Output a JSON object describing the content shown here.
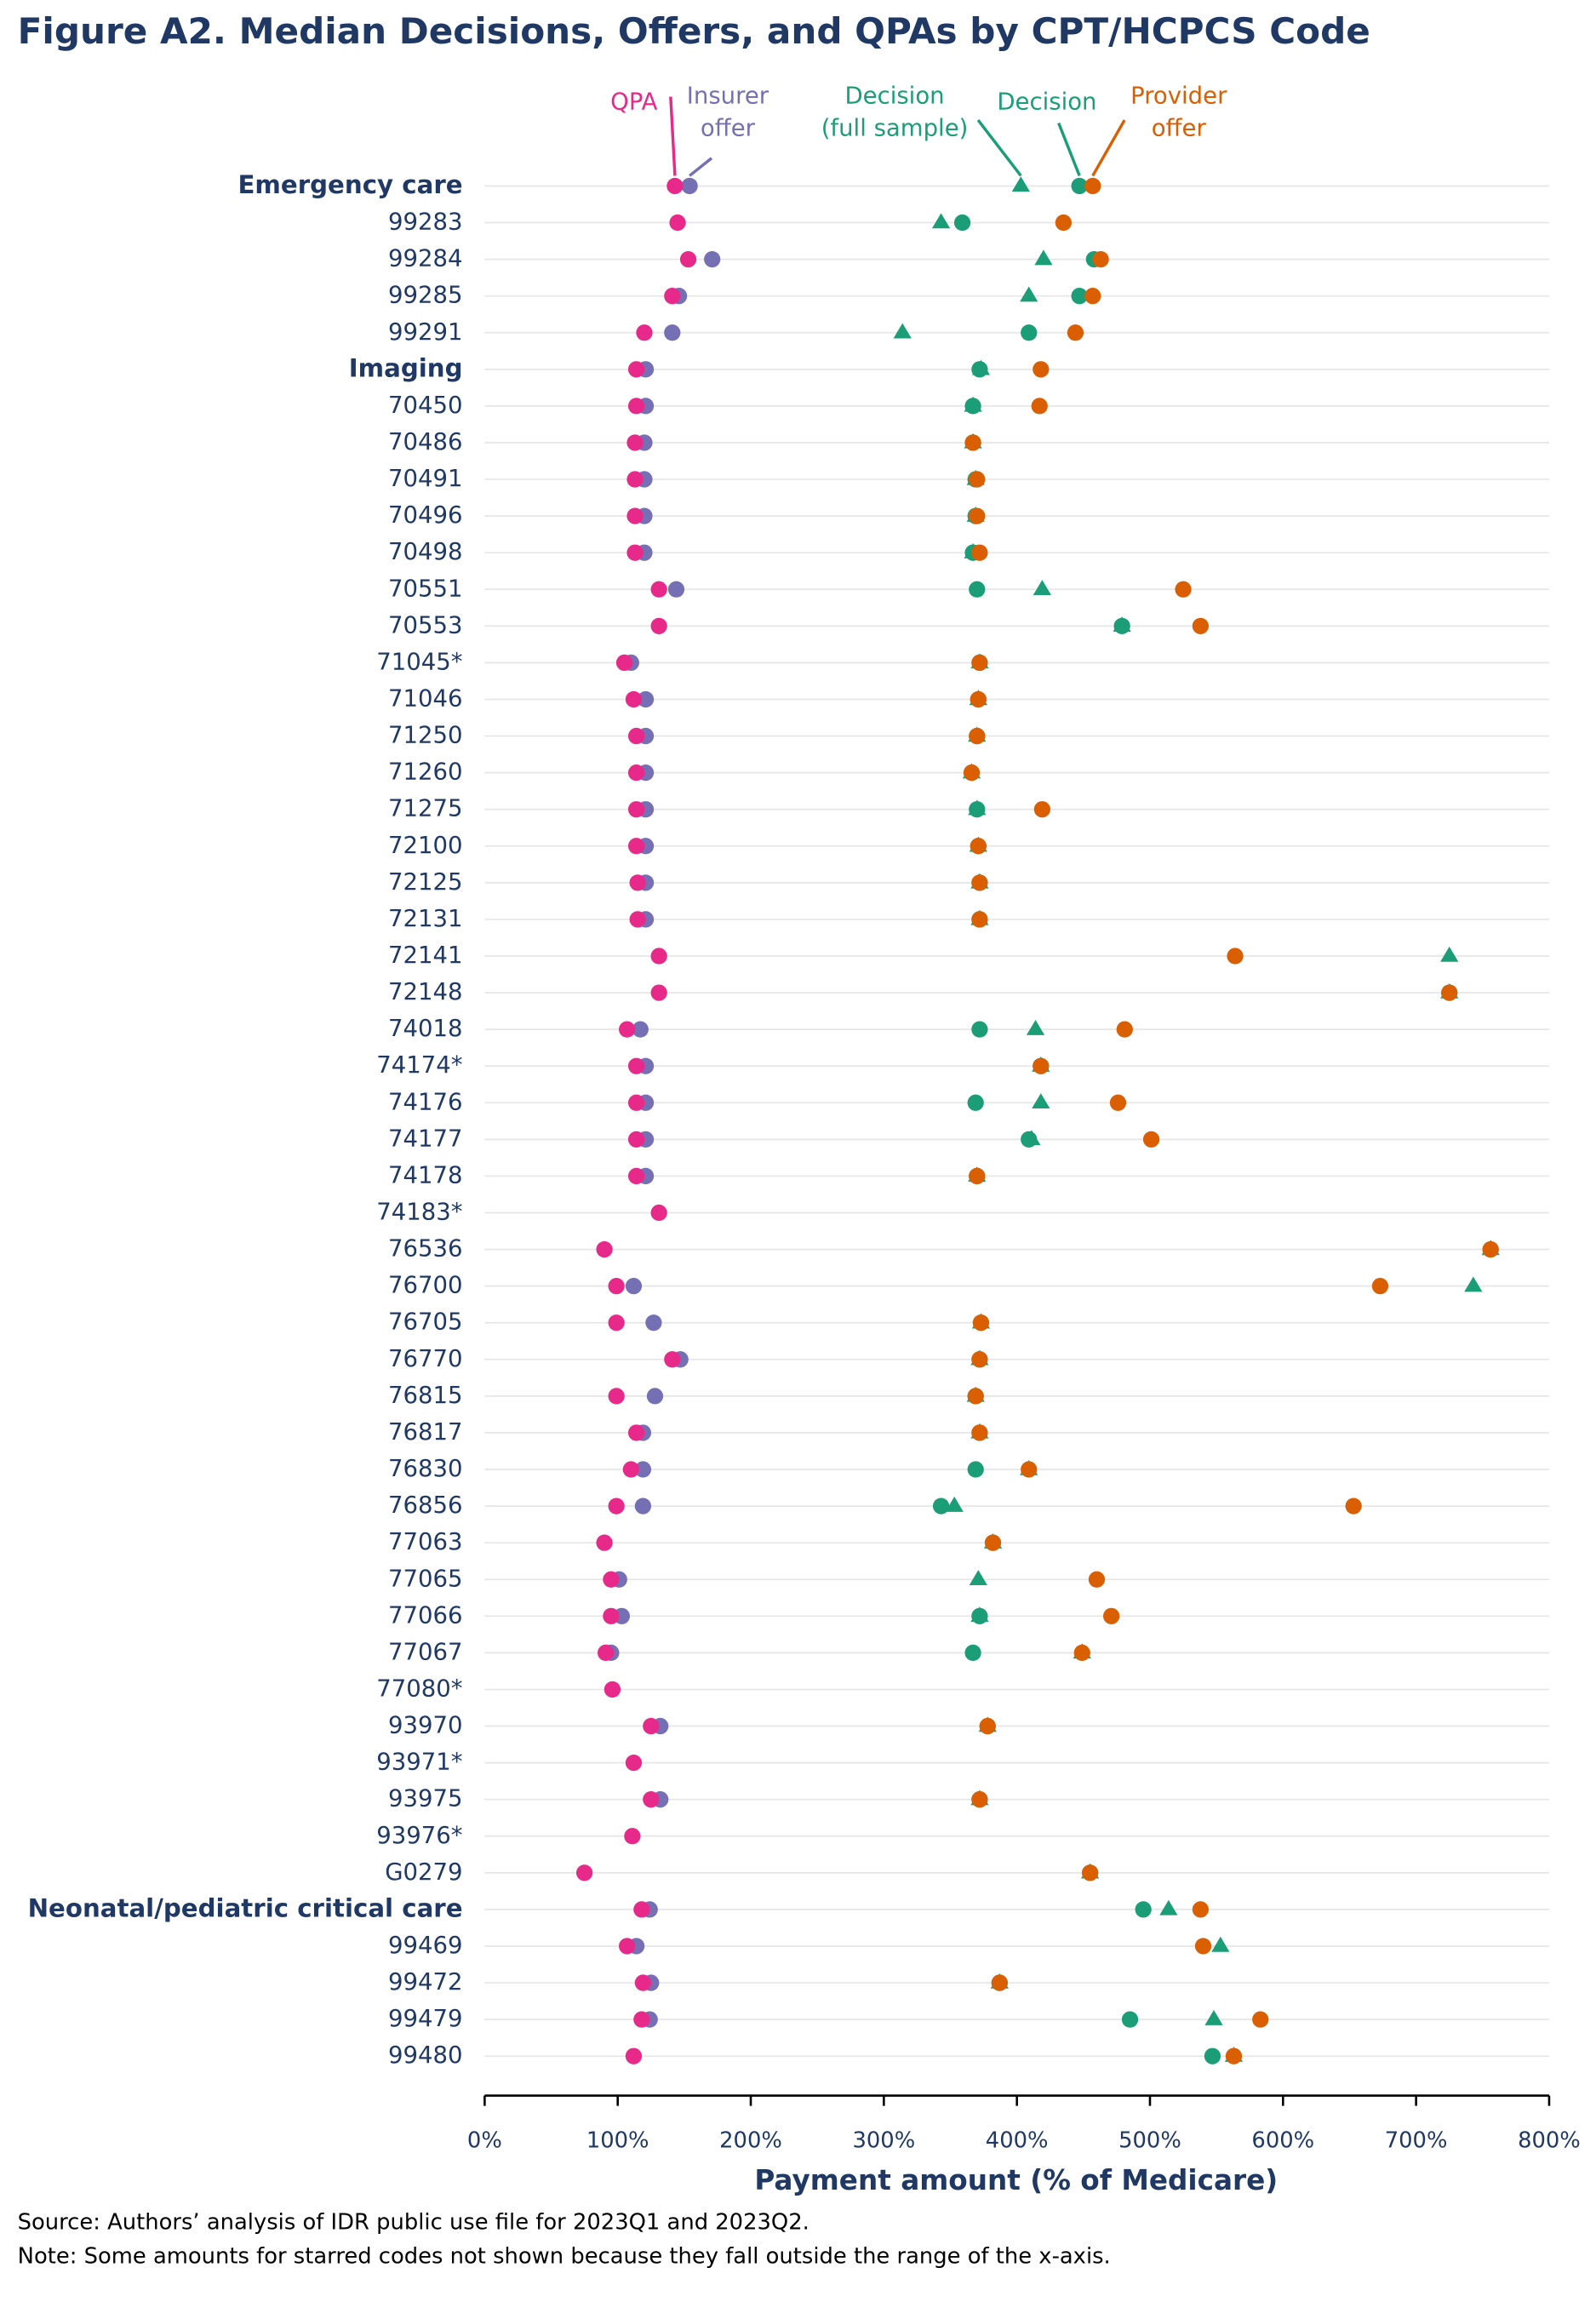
{
  "chart_data": {
    "type": "dot",
    "title": "Figure A2. Median Decisions, Offers, and QPAs by CPT/HCPCS Code",
    "x_label": "Payment amount (% of Medicare)",
    "source": "Source: Authors’ analysis of IDR public use file for 2023Q1 and 2023Q2.",
    "note": "Note: Some amounts for starred codes not shown because they fall outside the range of the x-axis.",
    "categories": [
      "Emergency care",
      "99283",
      "99284",
      "99285",
      "99291",
      "Imaging",
      "70450",
      "70486",
      "70491",
      "70496",
      "70498",
      "70551",
      "70553",
      "71045*",
      "71046",
      "71250",
      "71260",
      "71275",
      "72100",
      "72125",
      "72131",
      "72141",
      "72148",
      "74018",
      "74174*",
      "74176",
      "74177",
      "74178",
      "74183*",
      "76536",
      "76700",
      "76705",
      "76770",
      "76815",
      "76817",
      "76830",
      "76856",
      "77063",
      "77065",
      "77066",
      "77067",
      "77080*",
      "93970",
      "93971*",
      "93975",
      "93976*",
      "G0279",
      "Neonatal/pediatric critical care",
      "99469",
      "99472",
      "99479",
      "99480"
    ],
    "bold_rows": [
      0,
      5,
      47
    ],
    "xlim": [
      0,
      800
    ],
    "xticks": [
      {
        "value": 0,
        "label": "0%"
      },
      {
        "value": 100,
        "label": "100%"
      },
      {
        "value": 200,
        "label": "200%"
      },
      {
        "value": 300,
        "label": "300%"
      },
      {
        "value": 400,
        "label": "400%"
      },
      {
        "value": 500,
        "label": "500%"
      },
      {
        "value": 600,
        "label": "600%"
      },
      {
        "value": 700,
        "label": "700%"
      },
      {
        "value": 800,
        "label": "800%"
      }
    ],
    "grid": true,
    "series": [
      {
        "name": "Insurer\noffer",
        "color": "#7570b3",
        "marker": "circle",
        "values": [
          154,
          null,
          171,
          146,
          141,
          121,
          121,
          120,
          120,
          120,
          120,
          144,
          null,
          110,
          121,
          121,
          121,
          121,
          121,
          121,
          121,
          null,
          null,
          117,
          121,
          121,
          121,
          121,
          null,
          null,
          112,
          127,
          147,
          128,
          119,
          119,
          119,
          null,
          101,
          103,
          95,
          null,
          132,
          null,
          132,
          null,
          null,
          124,
          114,
          125,
          124,
          null
        ]
      },
      {
        "name": "QPA",
        "color": "#e7298a",
        "marker": "circle",
        "values": [
          143,
          145,
          153,
          141,
          120,
          114,
          114,
          113,
          113,
          113,
          113,
          131,
          131,
          105,
          112,
          114,
          114,
          114,
          114,
          115,
          115,
          131,
          131,
          107,
          114,
          114,
          114,
          114,
          131,
          90,
          99,
          99,
          141,
          99,
          114,
          110,
          99,
          90,
          95,
          95,
          91,
          96,
          125,
          112,
          125,
          111,
          75,
          118,
          107,
          119,
          118,
          112
        ]
      },
      {
        "name": "Decision\n(full sample)",
        "color": "#1b9e77",
        "marker": "triangle",
        "values": [
          403,
          343,
          420,
          409,
          314,
          373,
          367,
          367,
          369,
          369,
          367,
          419,
          479,
          372,
          371,
          370,
          366,
          370,
          371,
          372,
          372,
          725,
          725,
          414,
          418,
          418,
          411,
          370,
          null,
          756,
          743,
          373,
          372,
          369,
          372,
          409,
          353,
          382,
          371,
          372,
          449,
          null,
          378,
          null,
          372,
          null,
          455,
          514,
          553,
          387,
          548,
          563
        ]
      },
      {
        "name": "Decision",
        "color": "#1b9e77",
        "marker": "circle",
        "values": [
          447,
          359,
          458,
          447,
          409,
          372,
          367,
          367,
          369,
          369,
          367,
          370,
          479,
          372,
          371,
          370,
          366,
          370,
          371,
          372,
          372,
          null,
          725,
          372,
          418,
          369,
          409,
          370,
          null,
          756,
          null,
          373,
          372,
          369,
          372,
          369,
          343,
          382,
          null,
          372,
          367,
          null,
          378,
          null,
          372,
          null,
          455,
          495,
          null,
          387,
          485,
          547
        ]
      },
      {
        "name": "Provider\noffer",
        "color": "#d95f02",
        "marker": "circle",
        "values": [
          457,
          435,
          463,
          457,
          444,
          418,
          417,
          367,
          370,
          370,
          372,
          525,
          538,
          372,
          371,
          370,
          366,
          419,
          371,
          372,
          372,
          564,
          725,
          481,
          418,
          476,
          501,
          370,
          null,
          756,
          673,
          373,
          372,
          369,
          372,
          409,
          653,
          382,
          460,
          471,
          449,
          null,
          378,
          null,
          372,
          null,
          455,
          538,
          540,
          387,
          583,
          563
        ]
      }
    ]
  }
}
